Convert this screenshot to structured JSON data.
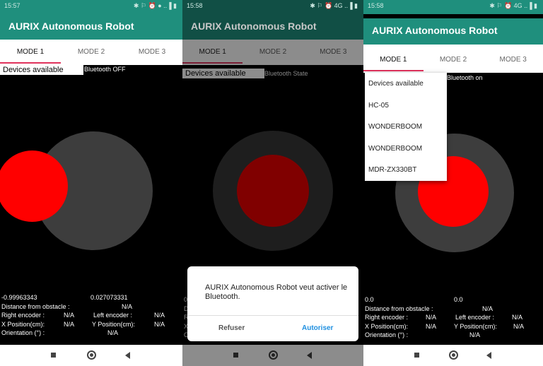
{
  "app_title": "AURIX Autonomous Robot",
  "tabs": [
    "MODE 1",
    "MODE 2",
    "MODE 3"
  ],
  "labels": {
    "distance": "Distance from obstacle :",
    "right_encoder": "Right encoder :",
    "left_encoder": "Left encoder :",
    "x_position": "X Position(cm):",
    "y_position": "Y Position(cm):",
    "orientation": "Orientation (°) :",
    "na": "N/A"
  },
  "screen1": {
    "status_time": "15:57",
    "status_right": "✱ ⚐ ⏰ ● ..▐ ▮",
    "spinner_value": "Devices available",
    "bt_status": "Bluetooth OFF",
    "joy_x": "-0.99963343",
    "joy_y": "0.027073331"
  },
  "screen2": {
    "status_time": "15:58",
    "status_right": "✱ ⚐ ⏰ 4G ..▐ ▮",
    "spinner_value": "Devices available",
    "bt_status": "Bluetooth State",
    "dialog_message": "AURIX Autonomous Robot veut activer le Bluetooth.",
    "dialog_deny": "Refuser",
    "dialog_allow": "Autoriser",
    "partial_letters": [
      "0",
      "D",
      "R",
      "X",
      "O"
    ]
  },
  "screen3": {
    "status_time": "15:58",
    "status_right": "✱ ⚐ ⏰ 4G ..▐ ▮",
    "bt_status": "Bluetooth on",
    "devices": [
      "Devices available",
      "HC-05",
      "WONDERBOOM",
      "WONDERBOOM",
      "MDR-ZX330BT"
    ],
    "joy_x": "0.0",
    "joy_y": "0.0"
  },
  "colors": {
    "teal": "#1f8f7d",
    "accent": "#e0325c",
    "joystick_base": "#3d3d3d",
    "joystick_knob": "#ff0000",
    "dialog_button": "#1e8fe0"
  }
}
